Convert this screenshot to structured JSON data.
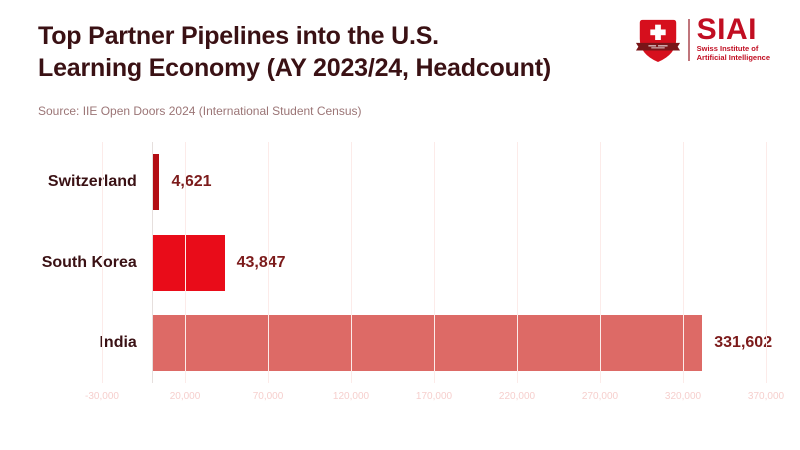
{
  "page": {
    "title_line1": "Top Partner Pipelines into the U.S.",
    "title_line2": "Learning Economy (AY 2023/24, Headcount)",
    "source": "Source: IIE Open Doors 2024 (International Student Census)"
  },
  "logo": {
    "acronym": "SIAI",
    "subtitle_line1": "Swiss Institute of",
    "subtitle_line2": "Artificial Intelligence",
    "shield_icon": "swiss-shield-cross-icon",
    "brand_red": "#c10e22"
  },
  "colors": {
    "background": "#ffffff",
    "title_text": "#3a1114",
    "source_text": "#9b7576",
    "value_label": "#7c1b1b",
    "gridline": "#fcebe9",
    "zero_axis": "#e6dfdd",
    "tick_label": "#f6cfcd"
  },
  "chart_data": {
    "type": "bar",
    "orientation": "horizontal",
    "title": "Top Partner Pipelines into the U.S. Learning Economy (AY 2023/24, Headcount)",
    "source": "IIE Open Doors 2024 (International Student Census)",
    "categories": [
      "Switzerland",
      "South Korea",
      "India"
    ],
    "values": [
      4621,
      43847,
      331602
    ],
    "value_labels": [
      "4,621",
      "43,847",
      "331,602"
    ],
    "bar_colors": [
      "#b30e13",
      "#e90c19",
      "#dd6a66"
    ],
    "xlabel": "",
    "ylabel": "",
    "xlim": [
      -30000,
      370000
    ],
    "xticks": [
      -30000,
      20000,
      70000,
      120000,
      170000,
      220000,
      270000,
      320000,
      370000
    ],
    "xtick_labels": [
      "-30,000",
      "20,000",
      "70,000",
      "120,000",
      "170,000",
      "220,000",
      "270,000",
      "320,000",
      "370,000"
    ],
    "grid": true,
    "legend": false
  }
}
